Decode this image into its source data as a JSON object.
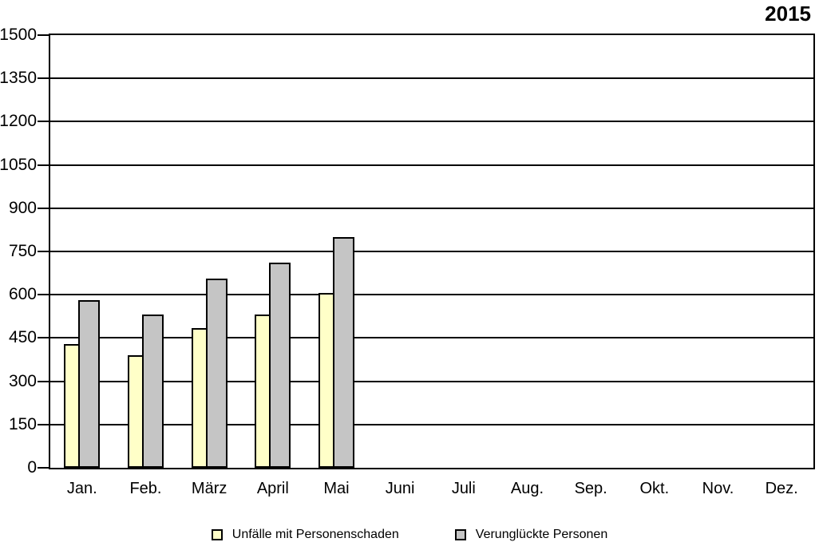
{
  "chart_data": {
    "type": "bar",
    "title": "2015",
    "categories": [
      "Jan.",
      "Feb.",
      "März",
      "April",
      "Mai",
      "Juni",
      "Juli",
      "Aug.",
      "Sep.",
      "Okt.",
      "Nov.",
      "Dez."
    ],
    "series": [
      {
        "name": "Unfälle mit Personenschaden",
        "color": "#FFFFC8",
        "values": [
          430,
          390,
          485,
          530,
          605,
          null,
          null,
          null,
          null,
          null,
          null,
          null
        ]
      },
      {
        "name": "Verunglückte Personen",
        "color": "#C5C5C5",
        "values": [
          580,
          530,
          655,
          710,
          800,
          null,
          null,
          null,
          null,
          null,
          null,
          null
        ]
      }
    ],
    "xlabel": "",
    "ylabel": "",
    "ylim": [
      0,
      1500
    ],
    "yticks": [
      0,
      150,
      300,
      450,
      600,
      750,
      900,
      1050,
      1200,
      1350,
      1500
    ],
    "grid": "horizontal",
    "legend_position": "bottom",
    "axis_color": "#000000",
    "background_color": "#ffffff"
  }
}
